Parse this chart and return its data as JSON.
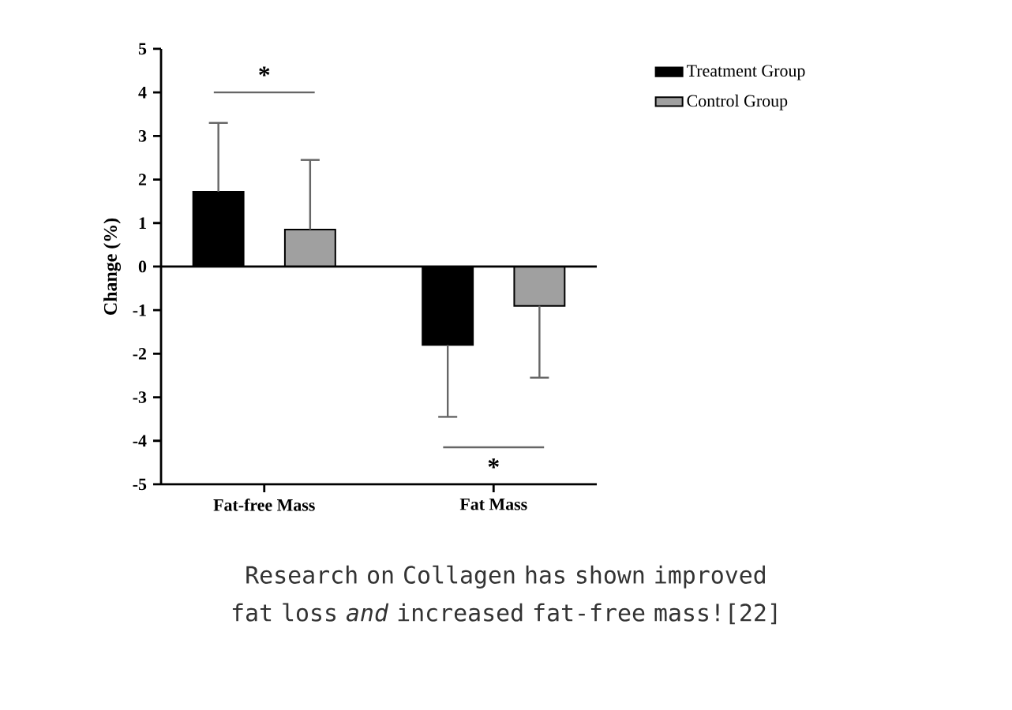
{
  "chart_data": {
    "type": "bar",
    "ylabel": "Change (%)",
    "categories": [
      "Fat-free Mass",
      "Fat Mass"
    ],
    "series": [
      {
        "name": "Treatment Group",
        "color": "#000000",
        "values": [
          1.72,
          -1.8
        ],
        "errors": [
          [
            1.72,
            3.3
          ],
          [
            -3.45,
            -1.8
          ]
        ]
      },
      {
        "name": "Control Group",
        "color": "#a0a0a0",
        "values": [
          0.85,
          -0.9
        ],
        "errors": [
          [
            0.85,
            2.45
          ],
          [
            -2.55,
            -0.9
          ]
        ]
      }
    ],
    "ylim": [
      -5,
      5
    ],
    "yticks": [
      -5,
      -4,
      -3,
      -2,
      -1,
      0,
      1,
      2,
      3,
      4,
      5
    ],
    "legend": "top right",
    "grid": false,
    "ref_lines": [
      {
        "axis": "y",
        "value": 0
      }
    ],
    "annotations": [
      "*",
      "*",
      "Research on Collagen has shown improved fat loss *and* increased fat-free mass![22]"
    ]
  }
}
